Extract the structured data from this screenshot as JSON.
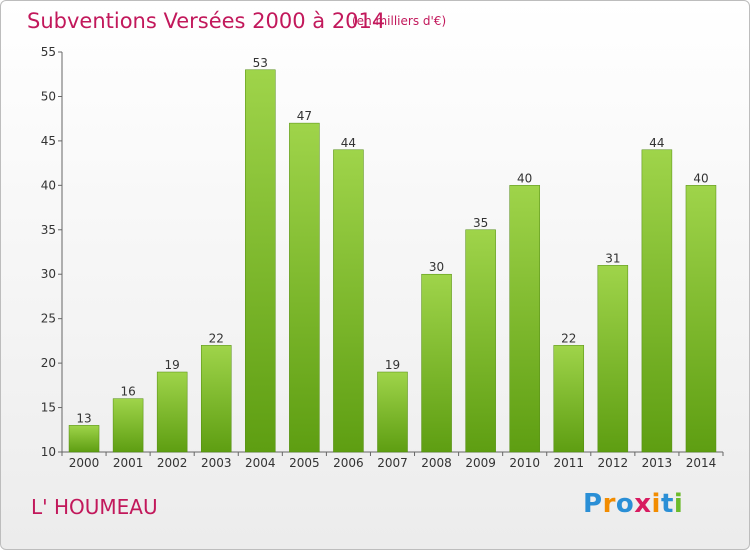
{
  "header": {
    "title": "Subventions Versées 2000 à 2014",
    "unit_note": "(en milliers d'€)"
  },
  "footer": {
    "place": "L' HOUMEAU",
    "logo_letters": [
      "P",
      "r",
      "o",
      "x",
      "i",
      "t",
      "i"
    ],
    "logo_colors": [
      "#2a8fd6",
      "#f28c00",
      "#2a8fd6",
      "#d81b60",
      "#f28c00",
      "#2a8fd6",
      "#6cbb2b"
    ]
  },
  "colors": {
    "bar_light": "#9fd44a",
    "bar_dark": "#5e9e12",
    "text": "#c2185b"
  },
  "chart_data": {
    "type": "bar",
    "categories": [
      "2000",
      "2001",
      "2002",
      "2003",
      "2004",
      "2005",
      "2006",
      "2007",
      "2008",
      "2009",
      "2010",
      "2011",
      "2012",
      "2013",
      "2014"
    ],
    "values": [
      13,
      16,
      19,
      22,
      53,
      47,
      44,
      19,
      30,
      35,
      40,
      22,
      31,
      44,
      40
    ],
    "ylim": [
      10,
      55
    ],
    "yticks": [
      10,
      15,
      20,
      25,
      30,
      35,
      40,
      45,
      50,
      55
    ],
    "grid": false,
    "data_labels": true
  }
}
